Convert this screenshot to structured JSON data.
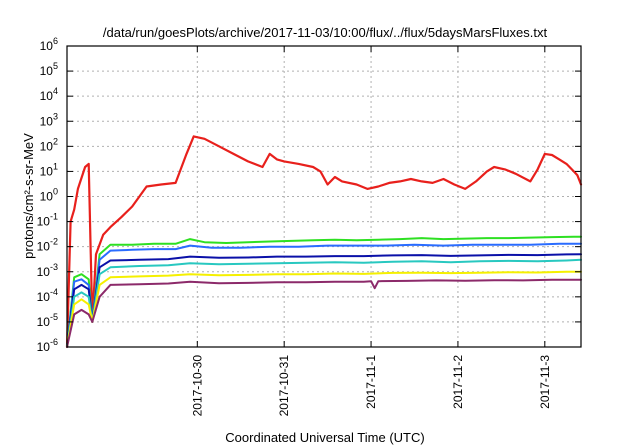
{
  "chart_data": {
    "type": "line",
    "title": "/data/run/goesPlots/archive/2017-11-03/10:00/flux/../flux/5daysMarsFluxes.txt",
    "xlabel": "Coordinated Universal Time (UTC)",
    "ylabel": "protons/cm²-s-sr-MeV",
    "yscale": "log",
    "ylim": [
      1e-06,
      1000000.0
    ],
    "y_ticks": [
      {
        "value": 1e-06,
        "base": "10",
        "exp": "-6"
      },
      {
        "value": 1e-05,
        "base": "10",
        "exp": "-5"
      },
      {
        "value": 0.0001,
        "base": "10",
        "exp": "-4"
      },
      {
        "value": 0.001,
        "base": "10",
        "exp": "-3"
      },
      {
        "value": 0.01,
        "base": "10",
        "exp": "-2"
      },
      {
        "value": 0.1,
        "base": "10",
        "exp": "-1"
      },
      {
        "value": 1,
        "base": "10",
        "exp": "0"
      },
      {
        "value": 10,
        "base": "10",
        "exp": "1"
      },
      {
        "value": 100,
        "base": "10",
        "exp": "2"
      },
      {
        "value": 1000,
        "base": "10",
        "exp": "3"
      },
      {
        "value": 10000,
        "base": "10",
        "exp": "4"
      },
      {
        "value": 100000,
        "base": "10",
        "exp": "5"
      },
      {
        "value": 1000000,
        "base": "10",
        "exp": "6"
      }
    ],
    "xlim": [
      "2017-10-28T12:00",
      "2017-11-03T10:00"
    ],
    "x_ticks": [
      {
        "value": "2017-10-30T00:00",
        "label": "2017-10-30"
      },
      {
        "value": "2017-10-31T00:00",
        "label": "2017-10-31"
      },
      {
        "value": "2017-11-01T00:00",
        "label": "2017-11-1"
      },
      {
        "value": "2017-11-02T00:00",
        "label": "2017-11-2"
      },
      {
        "value": "2017-11-03T00:00",
        "label": "2017-11-3"
      }
    ],
    "grid": true,
    "legend": "none",
    "series": [
      {
        "color": "#e8201c",
        "points": [
          [
            "2017-10-28T12:00",
            1e-06
          ],
          [
            "2017-10-28T13:00",
            0.1
          ],
          [
            "2017-10-28T14:00",
            0.3
          ],
          [
            "2017-10-28T15:00",
            2
          ],
          [
            "2017-10-28T17:00",
            15
          ],
          [
            "2017-10-28T18:00",
            20
          ],
          [
            "2017-10-28T19:00",
            1e-05
          ],
          [
            "2017-10-28T20:00",
            0.005
          ],
          [
            "2017-10-28T22:00",
            0.03
          ],
          [
            "2017-10-29T00:00",
            0.06
          ],
          [
            "2017-10-29T03:00",
            0.15
          ],
          [
            "2017-10-29T06:00",
            0.4
          ],
          [
            "2017-10-29T08:00",
            1
          ],
          [
            "2017-10-29T10:00",
            2.5
          ],
          [
            "2017-10-29T14:00",
            3
          ],
          [
            "2017-10-29T18:00",
            3.5
          ],
          [
            "2017-10-29T21:00",
            50
          ],
          [
            "2017-10-29T23:00",
            250
          ],
          [
            "2017-10-30T02:00",
            200
          ],
          [
            "2017-10-30T06:00",
            100
          ],
          [
            "2017-10-30T10:00",
            50
          ],
          [
            "2017-10-30T14:00",
            25
          ],
          [
            "2017-10-30T18:00",
            15
          ],
          [
            "2017-10-30T20:00",
            50
          ],
          [
            "2017-10-30T22:00",
            30
          ],
          [
            "2017-10-31T00:00",
            25
          ],
          [
            "2017-10-31T04:00",
            20
          ],
          [
            "2017-10-31T08:00",
            15
          ],
          [
            "2017-10-31T10:00",
            10
          ],
          [
            "2017-10-31T12:00",
            3
          ],
          [
            "2017-10-31T14:00",
            6
          ],
          [
            "2017-10-31T16:00",
            4
          ],
          [
            "2017-10-31T20:00",
            3
          ],
          [
            "2017-10-31T23:00",
            2
          ],
          [
            "2017-11-01T02:00",
            2.5
          ],
          [
            "2017-11-01T05:00",
            3.5
          ],
          [
            "2017-11-01T08:00",
            4
          ],
          [
            "2017-11-01T11:00",
            5
          ],
          [
            "2017-11-01T14:00",
            4
          ],
          [
            "2017-11-01T17:00",
            3.5
          ],
          [
            "2017-11-01T20:00",
            5
          ],
          [
            "2017-11-01T23:00",
            3
          ],
          [
            "2017-11-02T02:00",
            2
          ],
          [
            "2017-11-02T05:00",
            4
          ],
          [
            "2017-11-02T08:00",
            10
          ],
          [
            "2017-11-02T10:00",
            15
          ],
          [
            "2017-11-02T13:00",
            12
          ],
          [
            "2017-11-02T16:00",
            8
          ],
          [
            "2017-11-02T20:00",
            4
          ],
          [
            "2017-11-02T22:00",
            12
          ],
          [
            "2017-11-03T00:00",
            50
          ],
          [
            "2017-11-03T02:00",
            45
          ],
          [
            "2017-11-03T04:00",
            30
          ],
          [
            "2017-11-03T06:00",
            20
          ],
          [
            "2017-11-03T08:00",
            10
          ],
          [
            "2017-11-03T09:00",
            7
          ],
          [
            "2017-11-03T10:00",
            3
          ]
        ]
      },
      {
        "color": "#2ee022",
        "points": [
          [
            "2017-10-28T12:00",
            1e-06
          ],
          [
            "2017-10-28T14:00",
            0.0006
          ],
          [
            "2017-10-28T16:00",
            0.0008
          ],
          [
            "2017-10-28T18:00",
            0.0005
          ],
          [
            "2017-10-28T19:00",
            1e-05
          ],
          [
            "2017-10-28T21:00",
            0.005
          ],
          [
            "2017-10-29T00:00",
            0.012
          ],
          [
            "2017-10-29T06:00",
            0.012
          ],
          [
            "2017-10-29T12:00",
            0.013
          ],
          [
            "2017-10-29T18:00",
            0.013
          ],
          [
            "2017-10-29T22:00",
            0.02
          ],
          [
            "2017-10-30T02:00",
            0.015
          ],
          [
            "2017-10-30T08:00",
            0.014
          ],
          [
            "2017-10-30T14:00",
            0.015
          ],
          [
            "2017-10-30T20:00",
            0.016
          ],
          [
            "2017-10-31T02:00",
            0.017
          ],
          [
            "2017-10-31T08:00",
            0.018
          ],
          [
            "2017-10-31T14:00",
            0.019
          ],
          [
            "2017-10-31T20:00",
            0.018
          ],
          [
            "2017-11-01T02:00",
            0.019
          ],
          [
            "2017-11-01T08:00",
            0.02
          ],
          [
            "2017-11-01T14:00",
            0.022
          ],
          [
            "2017-11-01T20:00",
            0.02
          ],
          [
            "2017-11-02T02:00",
            0.021
          ],
          [
            "2017-11-02T08:00",
            0.022
          ],
          [
            "2017-11-02T14:00",
            0.022
          ],
          [
            "2017-11-02T20:00",
            0.023
          ],
          [
            "2017-11-03T02:00",
            0.024
          ],
          [
            "2017-11-03T08:00",
            0.025
          ],
          [
            "2017-11-03T10:00",
            0.025
          ]
        ]
      },
      {
        "color": "#2a6cff",
        "points": [
          [
            "2017-10-28T12:00",
            1e-06
          ],
          [
            "2017-10-28T14:00",
            0.0004
          ],
          [
            "2017-10-28T16:00",
            0.0005
          ],
          [
            "2017-10-28T18:00",
            0.0003
          ],
          [
            "2017-10-28T19:00",
            1e-05
          ],
          [
            "2017-10-28T21:00",
            0.003
          ],
          [
            "2017-10-29T00:00",
            0.007
          ],
          [
            "2017-10-29T06:00",
            0.0075
          ],
          [
            "2017-10-29T12:00",
            0.008
          ],
          [
            "2017-10-29T18:00",
            0.008
          ],
          [
            "2017-10-29T22:00",
            0.011
          ],
          [
            "2017-10-30T04:00",
            0.009
          ],
          [
            "2017-10-30T12:00",
            0.009
          ],
          [
            "2017-10-30T20:00",
            0.01
          ],
          [
            "2017-10-31T04:00",
            0.01
          ],
          [
            "2017-10-31T12:00",
            0.011
          ],
          [
            "2017-10-31T20:00",
            0.011
          ],
          [
            "2017-11-01T04:00",
            0.011
          ],
          [
            "2017-11-01T12:00",
            0.012
          ],
          [
            "2017-11-01T20:00",
            0.011
          ],
          [
            "2017-11-02T04:00",
            0.012
          ],
          [
            "2017-11-02T12:00",
            0.012
          ],
          [
            "2017-11-02T20:00",
            0.012
          ],
          [
            "2017-11-03T04:00",
            0.013
          ],
          [
            "2017-11-03T10:00",
            0.013
          ]
        ]
      },
      {
        "color": "#0a10a8",
        "points": [
          [
            "2017-10-28T12:00",
            1e-06
          ],
          [
            "2017-10-28T14:00",
            0.0002
          ],
          [
            "2017-10-28T16:00",
            0.0003
          ],
          [
            "2017-10-28T18:00",
            0.0002
          ],
          [
            "2017-10-28T19:00",
            1e-05
          ],
          [
            "2017-10-28T21:00",
            0.0015
          ],
          [
            "2017-10-29T00:00",
            0.0028
          ],
          [
            "2017-10-29T08:00",
            0.003
          ],
          [
            "2017-10-29T16:00",
            0.0032
          ],
          [
            "2017-10-29T22:00",
            0.004
          ],
          [
            "2017-10-30T06:00",
            0.0036
          ],
          [
            "2017-10-30T14:00",
            0.0037
          ],
          [
            "2017-10-30T22:00",
            0.004
          ],
          [
            "2017-10-31T06:00",
            0.004
          ],
          [
            "2017-10-31T14:00",
            0.0042
          ],
          [
            "2017-10-31T22:00",
            0.0042
          ],
          [
            "2017-11-01T06:00",
            0.0045
          ],
          [
            "2017-11-01T14:00",
            0.0046
          ],
          [
            "2017-11-01T22:00",
            0.0043
          ],
          [
            "2017-11-02T06:00",
            0.0045
          ],
          [
            "2017-11-02T14:00",
            0.0047
          ],
          [
            "2017-11-02T22:00",
            0.0046
          ],
          [
            "2017-11-03T06:00",
            0.0049
          ],
          [
            "2017-11-03T10:00",
            0.005
          ]
        ]
      },
      {
        "color": "#28c8c0",
        "points": [
          [
            "2017-10-28T12:00",
            1e-06
          ],
          [
            "2017-10-28T14:00",
            0.0001
          ],
          [
            "2017-10-28T16:00",
            0.00015
          ],
          [
            "2017-10-28T18:00",
            0.0001
          ],
          [
            "2017-10-28T19:00",
            1e-05
          ],
          [
            "2017-10-28T21:00",
            0.0008
          ],
          [
            "2017-10-29T00:00",
            0.0015
          ],
          [
            "2017-10-29T08:00",
            0.0017
          ],
          [
            "2017-10-29T16:00",
            0.0018
          ],
          [
            "2017-10-29T22:00",
            0.0022
          ],
          [
            "2017-10-30T06:00",
            0.002
          ],
          [
            "2017-10-30T14:00",
            0.0021
          ],
          [
            "2017-10-30T22:00",
            0.0022
          ],
          [
            "2017-10-31T06:00",
            0.0023
          ],
          [
            "2017-10-31T14:00",
            0.0024
          ],
          [
            "2017-10-31T22:00",
            0.0023
          ],
          [
            "2017-11-01T06:00",
            0.0025
          ],
          [
            "2017-11-01T14:00",
            0.0026
          ],
          [
            "2017-11-01T22:00",
            0.0024
          ],
          [
            "2017-11-02T06:00",
            0.0026
          ],
          [
            "2017-11-02T14:00",
            0.0027
          ],
          [
            "2017-11-02T22:00",
            0.0026
          ],
          [
            "2017-11-03T06:00",
            0.0028
          ],
          [
            "2017-11-03T10:00",
            0.003
          ]
        ]
      },
      {
        "color": "#f5f000",
        "points": [
          [
            "2017-10-28T12:00",
            1e-06
          ],
          [
            "2017-10-28T14:00",
            5e-05
          ],
          [
            "2017-10-28T16:00",
            8e-05
          ],
          [
            "2017-10-28T18:00",
            5e-05
          ],
          [
            "2017-10-28T19:00",
            1e-05
          ],
          [
            "2017-10-28T21:00",
            0.0003
          ],
          [
            "2017-10-29T00:00",
            0.0006
          ],
          [
            "2017-10-29T08:00",
            0.00065
          ],
          [
            "2017-10-29T16:00",
            0.0007
          ],
          [
            "2017-10-29T22:00",
            0.0008
          ],
          [
            "2017-10-30T06:00",
            0.00072
          ],
          [
            "2017-10-30T14:00",
            0.00075
          ],
          [
            "2017-10-30T22:00",
            0.0008
          ],
          [
            "2017-10-31T06:00",
            0.0008
          ],
          [
            "2017-10-31T14:00",
            0.00085
          ],
          [
            "2017-10-31T22:00",
            0.00082
          ],
          [
            "2017-11-01T06:00",
            0.0009
          ],
          [
            "2017-11-01T14:00",
            0.00092
          ],
          [
            "2017-11-01T22:00",
            0.00088
          ],
          [
            "2017-11-02T06:00",
            0.00092
          ],
          [
            "2017-11-02T14:00",
            0.00095
          ],
          [
            "2017-11-02T22:00",
            0.00093
          ],
          [
            "2017-11-03T06:00",
            0.001
          ],
          [
            "2017-11-03T10:00",
            0.001
          ]
        ]
      },
      {
        "color": "#8c2a6a",
        "points": [
          [
            "2017-10-28T12:00",
            1e-06
          ],
          [
            "2017-10-28T14:00",
            2e-05
          ],
          [
            "2017-10-28T16:00",
            3e-05
          ],
          [
            "2017-10-28T18:00",
            2e-05
          ],
          [
            "2017-10-28T19:00",
            1e-05
          ],
          [
            "2017-10-28T21:00",
            0.0001
          ],
          [
            "2017-10-29T00:00",
            0.0003
          ],
          [
            "2017-10-29T08:00",
            0.00032
          ],
          [
            "2017-10-29T16:00",
            0.00034
          ],
          [
            "2017-10-29T22:00",
            0.0004
          ],
          [
            "2017-10-30T06:00",
            0.00035
          ],
          [
            "2017-10-30T14:00",
            0.00036
          ],
          [
            "2017-10-30T22:00",
            0.00038
          ],
          [
            "2017-10-31T06:00",
            0.00038
          ],
          [
            "2017-10-31T14:00",
            0.0004
          ],
          [
            "2017-10-31T22:00",
            0.0004
          ],
          [
            "2017-11-01T00:00",
            0.00042
          ],
          [
            "2017-11-01T01:00",
            0.00022
          ],
          [
            "2017-11-01T02:00",
            0.00042
          ],
          [
            "2017-11-01T10:00",
            0.00043
          ],
          [
            "2017-11-01T18:00",
            0.00045
          ],
          [
            "2017-11-02T02:00",
            0.00044
          ],
          [
            "2017-11-02T10:00",
            0.00046
          ],
          [
            "2017-11-02T18:00",
            0.00045
          ],
          [
            "2017-11-03T02:00",
            0.00048
          ],
          [
            "2017-11-03T10:00",
            0.00048
          ]
        ]
      }
    ]
  }
}
